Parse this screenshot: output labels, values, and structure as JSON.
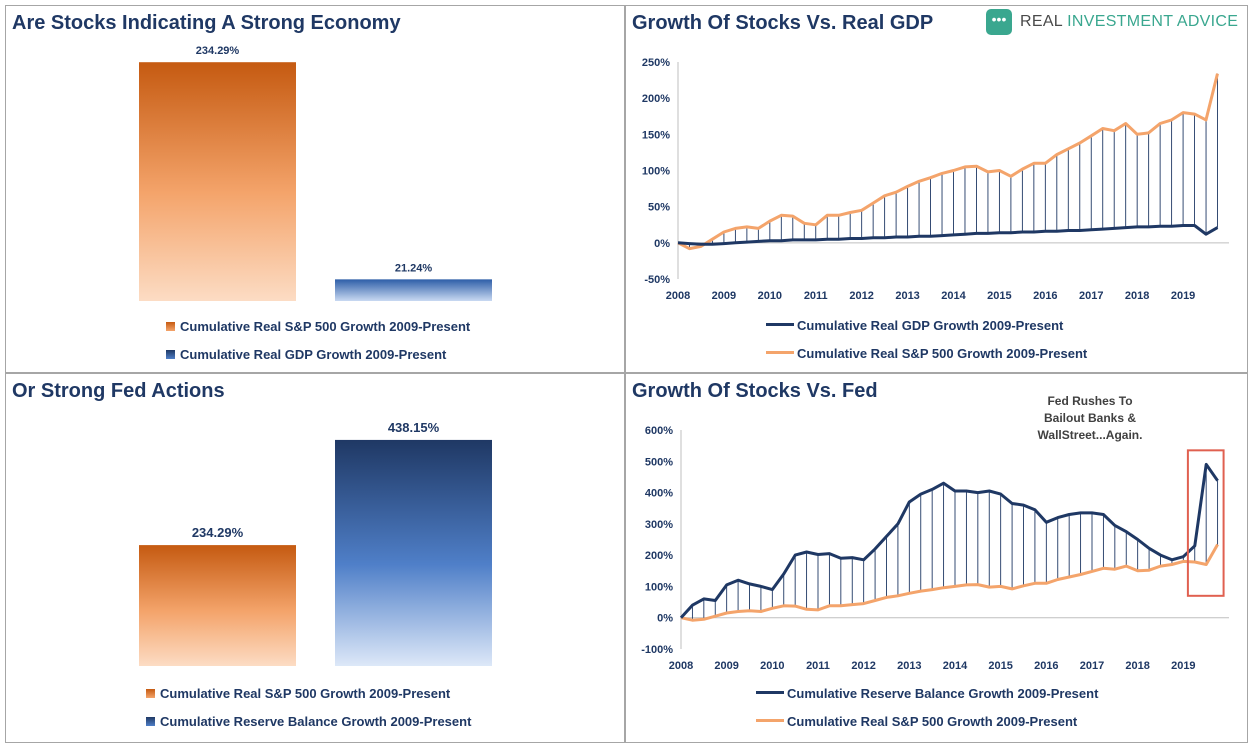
{
  "logo": {
    "icon": "chat-bubble-icon",
    "text_dark": "REAL ",
    "text_accent": "INVESTMENT ADVICE"
  },
  "colors": {
    "orange": "#e97c30",
    "orange_dark": "#c55a11",
    "navy": "#1f3864",
    "blue": "#2e5ea8",
    "highlight": "#e06050"
  },
  "annotation": {
    "lines": [
      "Fed Rushes To",
      "Bailout Banks &",
      "WallStreet...Again."
    ]
  },
  "chart_data": [
    {
      "type": "bar",
      "title": "Are Stocks Indicating A Strong Economy",
      "ylim": [
        0,
        260
      ],
      "series": [
        {
          "name": "Cumulative Real S&P 500 Growth 2009-Present",
          "value": 234.29,
          "label": "234.29%",
          "color": "orange"
        },
        {
          "name": "Cumulative Real GDP Growth 2009-Present",
          "value": 21.24,
          "label": "21.24%",
          "color": "blue"
        }
      ],
      "legend": "bottom"
    },
    {
      "type": "line",
      "title": "Growth Of Stocks Vs. Real GDP",
      "ylim": [
        -50,
        250
      ],
      "yticks": [
        -50,
        0,
        50,
        100,
        150,
        200,
        250
      ],
      "ytick_labels": [
        "-50%",
        "0%",
        "50%",
        "100%",
        "150%",
        "200%",
        "250%"
      ],
      "xlim": [
        2008,
        2020
      ],
      "xticks": [
        2008,
        2009,
        2010,
        2011,
        2012,
        2013,
        2014,
        2015,
        2016,
        2017,
        2018,
        2019
      ],
      "xtick_labels": [
        "2008",
        "2009",
        "2010",
        "2011",
        "2012",
        "2013",
        "2014",
        "2015",
        "2016",
        "2017",
        "2018",
        "2019"
      ],
      "x": [
        2008.0,
        2008.25,
        2008.5,
        2008.75,
        2009.0,
        2009.25,
        2009.5,
        2009.75,
        2010.0,
        2010.25,
        2010.5,
        2010.75,
        2011.0,
        2011.25,
        2011.5,
        2011.75,
        2012.0,
        2012.25,
        2012.5,
        2012.75,
        2013.0,
        2013.25,
        2013.5,
        2013.75,
        2014.0,
        2014.25,
        2014.5,
        2014.75,
        2015.0,
        2015.25,
        2015.5,
        2015.75,
        2016.0,
        2016.25,
        2016.5,
        2016.75,
        2017.0,
        2017.25,
        2017.5,
        2017.75,
        2018.0,
        2018.25,
        2018.5,
        2018.75,
        2019.0,
        2019.25,
        2019.5,
        2019.75
      ],
      "series": [
        {
          "name": "Cumulative Real GDP Growth 2009-Present",
          "color": "navy",
          "values": [
            0,
            -1,
            -2,
            -2,
            -1,
            0,
            1,
            2,
            3,
            3,
            4,
            4,
            4,
            5,
            5,
            6,
            6,
            7,
            7,
            8,
            8,
            9,
            9,
            10,
            11,
            12,
            13,
            13,
            14,
            14,
            15,
            15,
            16,
            16,
            17,
            17,
            18,
            19,
            20,
            21,
            22,
            22,
            23,
            23,
            24,
            24,
            12,
            21
          ]
        },
        {
          "name": "Cumulative Real S&P 500 Growth 2009-Present",
          "color": "orange",
          "values": [
            0,
            -8,
            -5,
            5,
            15,
            20,
            22,
            20,
            30,
            38,
            37,
            27,
            25,
            38,
            38,
            42,
            45,
            55,
            65,
            70,
            78,
            85,
            90,
            96,
            100,
            105,
            106,
            98,
            100,
            92,
            102,
            110,
            110,
            122,
            130,
            138,
            148,
            158,
            155,
            165,
            150,
            152,
            165,
            170,
            180,
            178,
            170,
            234
          ]
        }
      ],
      "legend": "bottom"
    },
    {
      "type": "bar",
      "title": "Or Strong Fed Actions",
      "ylim": [
        0,
        500
      ],
      "series": [
        {
          "name": "Cumulative Real S&P 500 Growth 2009-Present",
          "value": 234.29,
          "label": "234.29%",
          "color": "orange"
        },
        {
          "name": "Cumulative Reserve Balance Growth 2009-Present",
          "value": 438.15,
          "label": "438.15%",
          "color": "blue"
        }
      ],
      "legend": "bottom"
    },
    {
      "type": "line",
      "title": "Growth Of Stocks Vs. Fed",
      "ylim": [
        -100,
        600
      ],
      "yticks": [
        -100,
        0,
        100,
        200,
        300,
        400,
        500,
        600
      ],
      "ytick_labels": [
        "-100%",
        "0%",
        "100%",
        "200%",
        "300%",
        "400%",
        "500%",
        "600%"
      ],
      "xlim": [
        2008,
        2020
      ],
      "xticks": [
        2008,
        2009,
        2010,
        2011,
        2012,
        2013,
        2014,
        2015,
        2016,
        2017,
        2018,
        2019
      ],
      "xtick_labels": [
        "2008",
        "2009",
        "2010",
        "2011",
        "2012",
        "2013",
        "2014",
        "2015",
        "2016",
        "2017",
        "2018",
        "2019"
      ],
      "x": [
        2008.0,
        2008.25,
        2008.5,
        2008.75,
        2009.0,
        2009.25,
        2009.5,
        2009.75,
        2010.0,
        2010.25,
        2010.5,
        2010.75,
        2011.0,
        2011.25,
        2011.5,
        2011.75,
        2012.0,
        2012.25,
        2012.5,
        2012.75,
        2013.0,
        2013.25,
        2013.5,
        2013.75,
        2014.0,
        2014.25,
        2014.5,
        2014.75,
        2015.0,
        2015.25,
        2015.5,
        2015.75,
        2016.0,
        2016.25,
        2016.5,
        2016.75,
        2017.0,
        2017.25,
        2017.5,
        2017.75,
        2018.0,
        2018.25,
        2018.5,
        2018.75,
        2019.0,
        2019.25,
        2019.5,
        2019.75
      ],
      "series": [
        {
          "name": "Cumulative Reserve Balance Growth 2009-Present",
          "color": "navy",
          "values": [
            0,
            40,
            60,
            55,
            105,
            120,
            108,
            100,
            90,
            140,
            200,
            210,
            202,
            205,
            190,
            192,
            185,
            220,
            260,
            300,
            370,
            395,
            410,
            430,
            405,
            405,
            400,
            405,
            395,
            365,
            360,
            345,
            305,
            320,
            330,
            335,
            335,
            330,
            295,
            275,
            250,
            222,
            200,
            185,
            195,
            230,
            490,
            438
          ]
        },
        {
          "name": "Cumulative Real S&P 500 Growth 2009-Present",
          "color": "orange",
          "values": [
            0,
            -8,
            -5,
            5,
            15,
            20,
            22,
            20,
            30,
            38,
            37,
            27,
            25,
            38,
            38,
            42,
            45,
            55,
            65,
            70,
            78,
            85,
            90,
            96,
            100,
            105,
            106,
            98,
            100,
            92,
            102,
            110,
            110,
            122,
            130,
            138,
            148,
            158,
            155,
            165,
            150,
            152,
            165,
            170,
            180,
            178,
            170,
            234
          ]
        }
      ],
      "highlight": {
        "x_range": [
          2019.1,
          2019.75
        ],
        "y_range": [
          70,
          535
        ]
      },
      "legend": "bottom"
    }
  ]
}
